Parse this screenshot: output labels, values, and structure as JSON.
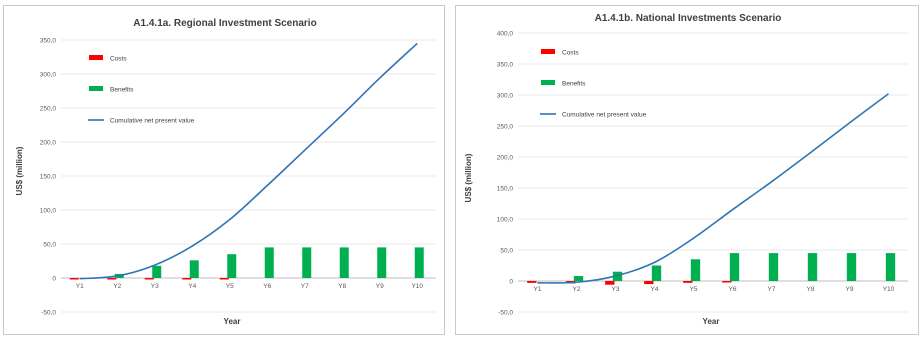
{
  "charts": [
    {
      "id": "a",
      "chart_data": {
        "type": "bar",
        "title": "A1.4.1a. Regional Investment Scenario",
        "xlabel": "Year",
        "ylabel": "US$ (million)",
        "categories": [
          "Y1",
          "Y2",
          "Y3",
          "Y4",
          "Y5",
          "Y6",
          "Y7",
          "Y8",
          "Y9",
          "Y10"
        ],
        "ylim": [
          -50,
          350
        ],
        "yticks": [
          "350,0",
          "300,0",
          "250,0",
          "200,0",
          "150,0",
          "100,0",
          "50,0",
          "0",
          "-50,0"
        ],
        "ytick_values": [
          350,
          300,
          250,
          200,
          150,
          100,
          50,
          0,
          -50
        ],
        "grid": true,
        "legend_position": "top-left",
        "series": [
          {
            "name": "Costs",
            "kind": "bar",
            "color": "#ff0000",
            "values": [
              -1,
              -2,
              -2,
              -1,
              -1,
              0,
              0,
              0,
              0,
              0
            ]
          },
          {
            "name": "Benefits",
            "kind": "bar",
            "color": "#00b050",
            "values": [
              0,
              6,
              18,
              26,
              35,
              45,
              45,
              45,
              45,
              45
            ]
          },
          {
            "name": "Cumulative net present value",
            "kind": "line",
            "color": "#2e75b6",
            "values": [
              -1,
              3,
              19,
              47,
              86,
              136,
              188,
              240,
              294,
              345
            ]
          }
        ]
      }
    },
    {
      "id": "b",
      "chart_data": {
        "type": "bar",
        "title": "A1.4.1b. National Investments Scenario",
        "xlabel": "Year",
        "ylabel": "US$ (million)",
        "categories": [
          "Y1",
          "Y2",
          "Y3",
          "Y4",
          "Y5",
          "Y6",
          "Y7",
          "Y8",
          "Y9",
          "Y10"
        ],
        "ylim": [
          -50,
          400
        ],
        "yticks": [
          "400,0",
          "350,0",
          "300,0",
          "250,0",
          "200,0",
          "150,0",
          "100,0",
          "50,0",
          "0",
          "-50,0"
        ],
        "ytick_values": [
          400,
          350,
          300,
          250,
          200,
          150,
          100,
          50,
          0,
          -50
        ],
        "grid": true,
        "legend_position": "top-left",
        "series": [
          {
            "name": "Costs",
            "kind": "bar",
            "color": "#ff0000",
            "values": [
              -3,
              -4,
              -6,
              -5,
              -3,
              -1,
              0,
              0,
              0,
              0
            ]
          },
          {
            "name": "Benefits",
            "kind": "bar",
            "color": "#00b050",
            "values": [
              0,
              8,
              15,
              25,
              35,
              45,
              45,
              45,
              45,
              45
            ]
          },
          {
            "name": "Cumulative net present value",
            "kind": "line",
            "color": "#2e75b6",
            "values": [
              -3,
              -2,
              8,
              30,
              69,
              115,
              160,
              207,
              255,
              302
            ]
          }
        ]
      }
    }
  ]
}
